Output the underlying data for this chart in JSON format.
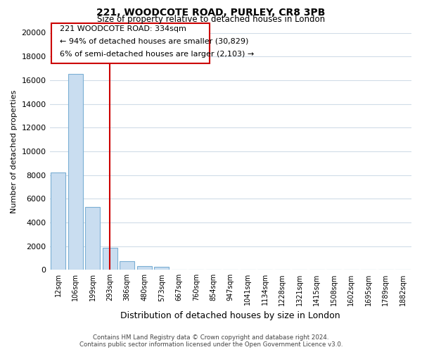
{
  "title": "221, WOODCOTE ROAD, PURLEY, CR8 3PB",
  "subtitle": "Size of property relative to detached houses in London",
  "xlabel": "Distribution of detached houses by size in London",
  "ylabel": "Number of detached properties",
  "bar_labels": [
    "12sqm",
    "106sqm",
    "199sqm",
    "293sqm",
    "386sqm",
    "480sqm",
    "573sqm",
    "667sqm",
    "760sqm",
    "854sqm",
    "947sqm",
    "1041sqm",
    "1134sqm",
    "1228sqm",
    "1321sqm",
    "1415sqm",
    "1508sqm",
    "1602sqm",
    "1695sqm",
    "1789sqm",
    "1882sqm"
  ],
  "bar_values": [
    8200,
    16500,
    5300,
    1850,
    750,
    300,
    250,
    0,
    0,
    0,
    0,
    0,
    0,
    0,
    0,
    0,
    0,
    0,
    0,
    0,
    0
  ],
  "bar_color": "#c9ddf0",
  "bar_edge_color": "#7bafd4",
  "vline_pos": 3.0,
  "vline_color": "#cc0000",
  "ylim": [
    0,
    20000
  ],
  "yticks": [
    0,
    2000,
    4000,
    6000,
    8000,
    10000,
    12000,
    14000,
    16000,
    18000,
    20000
  ],
  "annotation_title": "221 WOODCOTE ROAD: 334sqm",
  "annotation_line1": "← 94% of detached houses are smaller (30,829)",
  "annotation_line2": "6% of semi-detached houses are larger (2,103) →",
  "annotation_box_color": "#ffffff",
  "annotation_box_edge": "#cc0000",
  "footer_line1": "Contains HM Land Registry data © Crown copyright and database right 2024.",
  "footer_line2": "Contains public sector information licensed under the Open Government Licence v3.0.",
  "background_color": "#ffffff",
  "grid_color": "#d0dce8"
}
